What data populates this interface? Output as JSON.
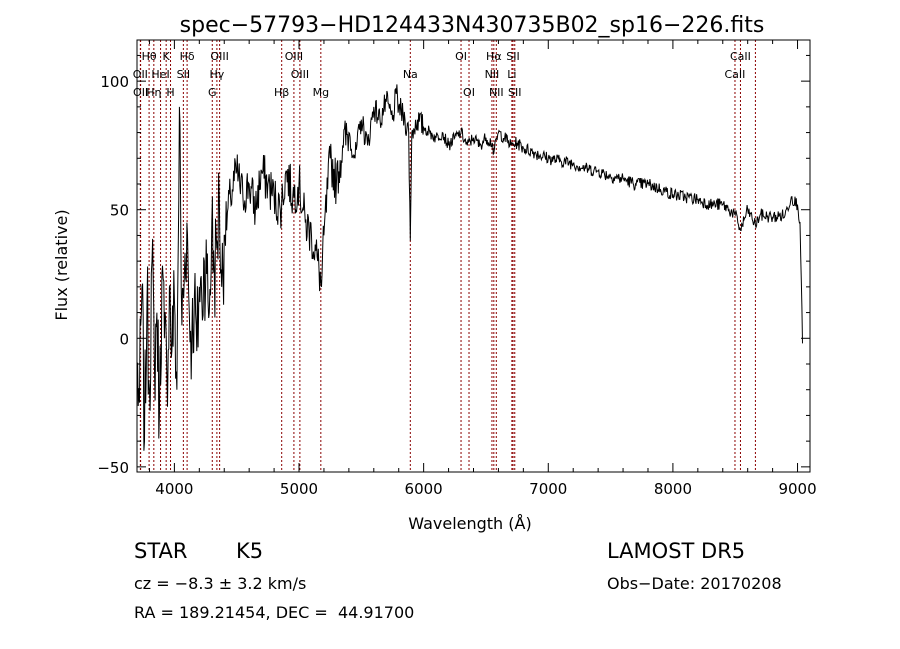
{
  "chart_data": {
    "type": "line",
    "title": "spec−57793−HD124433N430735B02_sp16−226.fits",
    "xlabel": "Wavelength (Å)",
    "ylabel": "Flux (relative)",
    "xlim": [
      3700,
      9100
    ],
    "ylim": [
      -52,
      116
    ],
    "xticks": [
      4000,
      5000,
      6000,
      7000,
      8000,
      9000
    ],
    "xtick_labels": [
      "4000",
      "5000",
      "6000",
      "7000",
      "8000",
      "9000"
    ],
    "yticks": [
      -50,
      0,
      50,
      100
    ],
    "ytick_labels": [
      "−50",
      "0",
      "50",
      "100"
    ],
    "grid": false,
    "series": [
      {
        "color": "#000000",
        "x": [
          3700,
          3720,
          3740,
          3760,
          3780,
          3800,
          3820,
          3840,
          3860,
          3880,
          3900,
          3920,
          3940,
          3960,
          3980,
          4000,
          4020,
          4040,
          4060,
          4080,
          4100,
          4120,
          4140,
          4160,
          4180,
          4200,
          4220,
          4240,
          4260,
          4280,
          4300,
          4320,
          4340,
          4360,
          4380,
          4400,
          4450,
          4500,
          4550,
          4600,
          4650,
          4700,
          4750,
          4800,
          4850,
          4900,
          4950,
          5000,
          5050,
          5100,
          5150,
          5180,
          5200,
          5250,
          5300,
          5350,
          5400,
          5450,
          5500,
          5550,
          5600,
          5650,
          5700,
          5750,
          5780,
          5800,
          5850,
          5880,
          5893,
          5905,
          5950,
          6000,
          6050,
          6100,
          6150,
          6200,
          6250,
          6300,
          6350,
          6400,
          6450,
          6500,
          6550,
          6563,
          6600,
          6650,
          6700,
          6750,
          6800,
          6900,
          7000,
          7100,
          7200,
          7300,
          7400,
          7500,
          7600,
          7700,
          7800,
          7900,
          8000,
          8100,
          8200,
          8300,
          8400,
          8450,
          8500,
          8542,
          8600,
          8662,
          8700,
          8800,
          8900,
          8950,
          9000,
          9020,
          9040
        ],
        "y": [
          -10,
          -25,
          20,
          -40,
          15,
          -20,
          30,
          -10,
          10,
          -30,
          25,
          0,
          -15,
          20,
          -5,
          15,
          -20,
          90,
          5,
          25,
          45,
          10,
          0,
          15,
          -5,
          20,
          15,
          30,
          25,
          10,
          45,
          25,
          35,
          55,
          20,
          40,
          55,
          65,
          55,
          60,
          50,
          65,
          60,
          55,
          50,
          65,
          55,
          60,
          45,
          40,
          30,
          20,
          40,
          70,
          60,
          75,
          80,
          70,
          85,
          75,
          90,
          85,
          92,
          85,
          95,
          90,
          85,
          80,
          38,
          80,
          85,
          82,
          80,
          78,
          80,
          75,
          78,
          80,
          75,
          78,
          75,
          78,
          76,
          72,
          80,
          78,
          75,
          76,
          74,
          72,
          70,
          69,
          68,
          66,
          65,
          63,
          62,
          60,
          60,
          58,
          56,
          55,
          54,
          52,
          52,
          50,
          48,
          42,
          50,
          44,
          48,
          47,
          48,
          55,
          52,
          45,
          -2
        ]
      }
    ],
    "annotations": [
      {
        "label": "Hθ",
        "x": 3797
      },
      {
        "label": "K",
        "x": 3934
      },
      {
        "label": "Hδ",
        "x": 4102
      },
      {
        "label": "OIII",
        "x": 4363
      },
      {
        "label": "OIII",
        "x": 4959
      },
      {
        "label": "OI",
        "x": 6300
      },
      {
        "label": "Hα",
        "x": 6563
      },
      {
        "label": "SII",
        "x": 6717
      },
      {
        "label": "CaII",
        "x": 8542
      },
      {
        "label": "OII",
        "x": 3727
      },
      {
        "label": "HeI",
        "x": 3889
      },
      {
        "label": "SII",
        "x": 4072
      },
      {
        "label": "Hγ",
        "x": 4341
      },
      {
        "label": "OIII",
        "x": 5007
      },
      {
        "label": "Na",
        "x": 5893
      },
      {
        "label": "NII",
        "x": 6548
      },
      {
        "label": "Li",
        "x": 6708
      },
      {
        "label": "CaII",
        "x": 8498
      },
      {
        "label": "OII",
        "x": 3729
      },
      {
        "label": "Hη",
        "x": 3835
      },
      {
        "label": "H",
        "x": 3969
      },
      {
        "label": "G",
        "x": 4304
      },
      {
        "label": "Hβ",
        "x": 4861
      },
      {
        "label": "Mg",
        "x": 5175
      },
      {
        "label": "OI",
        "x": 6364
      },
      {
        "label": "NII",
        "x": 6583
      },
      {
        "label": "SII",
        "x": 6731
      },
      {
        "label": "CaII",
        "x": 8662
      }
    ],
    "line_marker_color": "#8b0000"
  },
  "info": {
    "object_class": "STAR",
    "subclass": "K5",
    "survey": "LAMOST DR5",
    "velocity": "cz = −8.3 ± 3.2 km/s",
    "obs_date": "Obs−Date: 20170208",
    "coords": "RA = 189.21454, DEC =  44.91700"
  }
}
